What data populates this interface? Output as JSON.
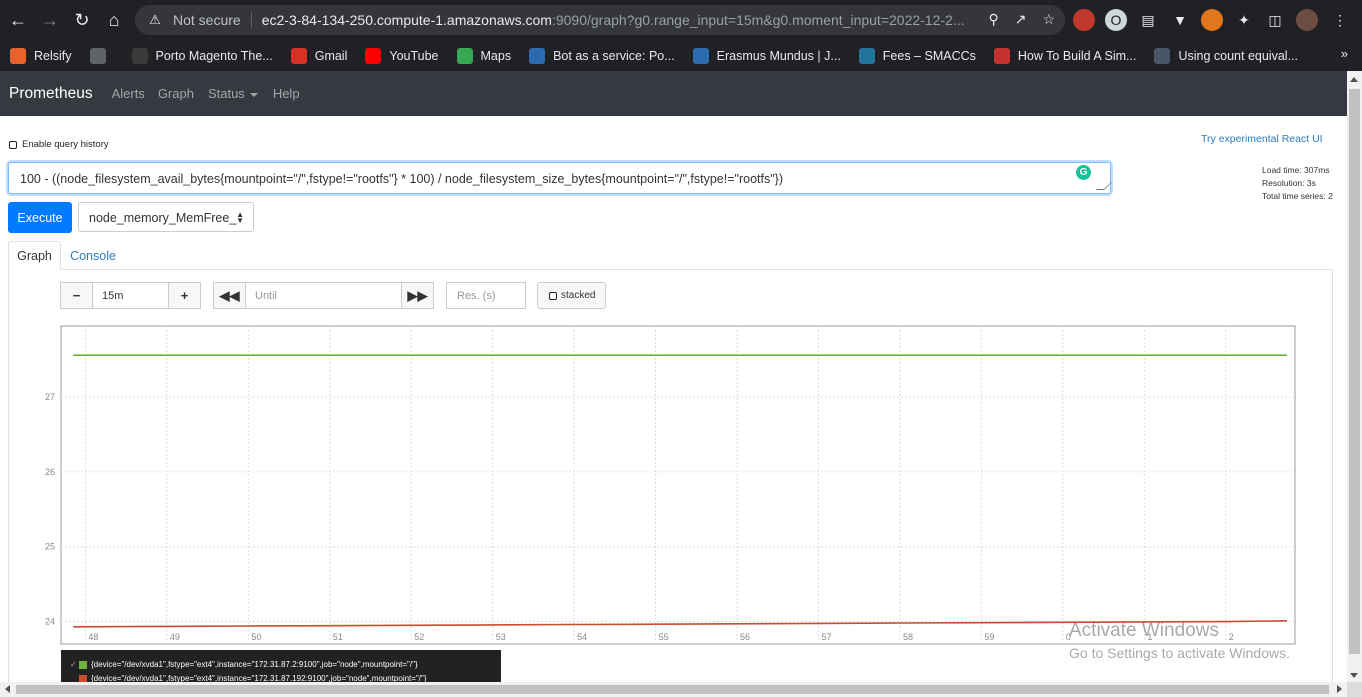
{
  "browser": {
    "not_secure": "Not secure",
    "url_host": "ec2-3-84-134-250.compute-1.amazonaws.com",
    "url_path": ":9090/graph?g0.range_input=15m&g0.moment_input=2022-12-2...",
    "bookmarks": [
      {
        "label": "Relsify",
        "icon": "relsify-icon",
        "color": "#e8622c"
      },
      {
        "label": "",
        "icon": "globe-icon",
        "color": "#5f6368"
      },
      {
        "label": "Porto Magento The...",
        "icon": "porto-icon",
        "color": "#3a3a3a"
      },
      {
        "label": "Gmail",
        "icon": "gmail-icon",
        "color": "#d93025"
      },
      {
        "label": "YouTube",
        "icon": "youtube-icon",
        "color": "#ff0000"
      },
      {
        "label": "Maps",
        "icon": "maps-icon",
        "color": "#34a853"
      },
      {
        "label": "Bot as a service: Po...",
        "icon": "bot-icon",
        "color": "#2b6cb0"
      },
      {
        "label": "Erasmus Mundus | J...",
        "icon": "erasmus-icon",
        "color": "#2b6cb0"
      },
      {
        "label": "Fees – SMACCs",
        "icon": "wordpress-icon",
        "color": "#21759b"
      },
      {
        "label": "How To Build A Sim...",
        "icon": "feather-icon",
        "color": "#c53030"
      },
      {
        "label": "Using count equival...",
        "icon": "excel-icon",
        "color": "#4a5568"
      }
    ]
  },
  "nav": {
    "brand": "Prometheus",
    "links": [
      "Alerts",
      "Graph",
      "Status",
      "Help"
    ]
  },
  "page": {
    "enable_history": "Enable query history",
    "react_ui": "Try experimental React UI",
    "query": "100 - ((node_filesystem_avail_bytes{mountpoint=\"/\",fstype!=\"rootfs\"} * 100) / node_filesystem_size_bytes{mountpoint=\"/\",fstype!=\"rootfs\"})",
    "load_time": "Load time: 307ms",
    "resolution": "Resolution: 3s",
    "total_series": "Total time series: 2",
    "execute": "Execute",
    "metric_select": "node_memory_MemFree_",
    "tab_graph": "Graph",
    "tab_console": "Console",
    "range": "15m",
    "until_placeholder": "Until",
    "res_placeholder": "Res. (s)",
    "stacked": "stacked"
  },
  "legend": [
    {
      "label": "{device=\"/dev/xvda1\",fstype=\"ext4\",instance=\"172.31.87.2:9100\",job=\"node\",mountpoint=\"/\"}",
      "color": "#6db33f"
    },
    {
      "label": "{device=\"/dev/xvda1\",fstype=\"ext4\",instance=\"172.31.87.192:9100\",job=\"node\",mountpoint=\"/\"}",
      "color": "#cb4b2e"
    }
  ],
  "watermark": {
    "line1": "Activate Windows",
    "line2": "Go to Settings to activate Windows."
  },
  "chart_data": {
    "type": "line",
    "x_ticks": [
      "48",
      "49",
      "50",
      "51",
      "52",
      "53",
      "54",
      "55",
      "56",
      "57",
      "58",
      "59",
      "0",
      "1",
      "2"
    ],
    "y_ticks": [
      24,
      25,
      26,
      27
    ],
    "ylim": [
      23.7,
      27.95
    ],
    "grid": true,
    "series": [
      {
        "color": "#6db33f",
        "x": [
          47.85,
          48,
          49,
          50,
          51,
          52,
          53,
          54,
          55,
          56,
          57,
          58,
          59,
          60,
          61,
          62,
          62.75
        ],
        "y": [
          27.56,
          27.56,
          27.56,
          27.56,
          27.56,
          27.56,
          27.56,
          27.56,
          27.56,
          27.56,
          27.56,
          27.56,
          27.56,
          27.56,
          27.56,
          27.56,
          27.56
        ]
      },
      {
        "color": "#cb4b2e",
        "x": [
          47.85,
          48,
          49,
          50,
          51,
          52,
          53,
          54,
          55,
          56,
          57,
          58,
          59,
          60,
          61,
          62,
          62.75
        ],
        "y": [
          23.93,
          23.93,
          23.935,
          23.94,
          23.945,
          23.95,
          23.955,
          23.96,
          23.965,
          23.97,
          23.975,
          23.98,
          23.985,
          23.99,
          23.995,
          24.0,
          24.01
        ]
      }
    ]
  }
}
